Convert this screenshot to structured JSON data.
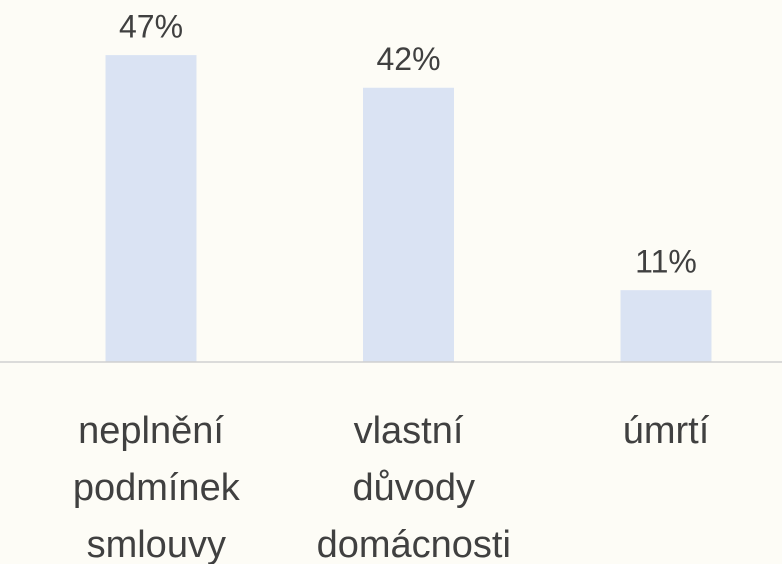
{
  "chart_data": {
    "type": "bar",
    "categories": [
      "neplnění podmínek smlouvy",
      "vlastní důvody domácnosti",
      "úmrtí"
    ],
    "values": [
      47,
      42,
      11
    ],
    "value_labels": [
      "47%",
      "42%",
      "11%"
    ],
    "color": "#dae3f3"
  }
}
